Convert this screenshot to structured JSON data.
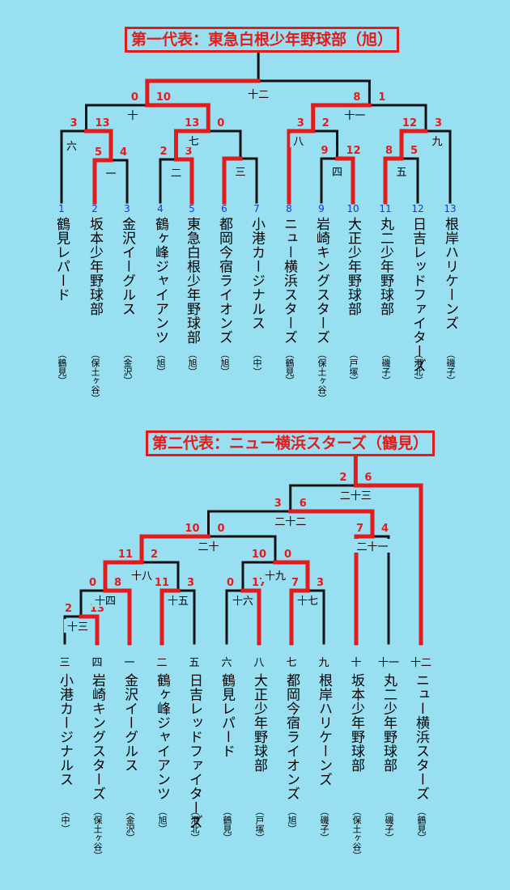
{
  "colors": {
    "background": "#99dff2",
    "winner_line": "#e31b1b",
    "line": "#111111",
    "seed_number": "#1e30e0"
  },
  "bracket1": {
    "title": "第一代表：東急白根少年野球部（旭）",
    "teams": [
      {
        "no": "1",
        "name": "鶴見レパード",
        "region": "（鶴見）"
      },
      {
        "no": "2",
        "name": "坂本少年野球部",
        "region": "（保土ヶ谷）"
      },
      {
        "no": "3",
        "name": "金沢イーグルス",
        "region": "（金沢）"
      },
      {
        "no": "4",
        "name": "鶴ヶ峰ジャイアンツ",
        "region": "（旭）"
      },
      {
        "no": "5",
        "name": "東急白根少年野球部",
        "region": "（旭）"
      },
      {
        "no": "6",
        "name": "都岡今宿ライオンズ",
        "region": "（旭）"
      },
      {
        "no": "7",
        "name": "小港カージナルス",
        "region": "（中）"
      },
      {
        "no": "8",
        "name": "ニュー横浜スターズ",
        "region": "（鶴見）"
      },
      {
        "no": "9",
        "name": "岩崎キングスターズ",
        "region": "（保土ヶ谷）"
      },
      {
        "no": "10",
        "name": "大正少年野球部",
        "region": "（戸塚）"
      },
      {
        "no": "11",
        "name": "丸二少年野球部",
        "region": "（磯子）"
      },
      {
        "no": "12",
        "name": "日吉レッドファイターズ",
        "region": "（港北）"
      },
      {
        "no": "13",
        "name": "根岸ハリケーンズ",
        "region": "（磯子）"
      }
    ],
    "games": [
      {
        "label": "一",
        "scores": [
          "5",
          "4"
        ]
      },
      {
        "label": "二",
        "scores": [
          "2",
          "3"
        ]
      },
      {
        "label": "三",
        "scores": [
          "",
          ""
        ]
      },
      {
        "label": "四",
        "scores": [
          "9",
          "12"
        ]
      },
      {
        "label": "五",
        "scores": [
          "8",
          "5"
        ]
      },
      {
        "label": "六",
        "scores": [
          "3",
          "13"
        ]
      },
      {
        "label": "七",
        "scores": [
          "13",
          "0"
        ]
      },
      {
        "label": "八",
        "scores": [
          "3",
          "2"
        ]
      },
      {
        "label": "九",
        "scores": [
          "12",
          "3"
        ]
      },
      {
        "label": "十",
        "scores": [
          "0",
          "10"
        ]
      },
      {
        "label": "十一",
        "scores": [
          "8",
          "1"
        ]
      },
      {
        "label": "十二",
        "scores": [
          "",
          ""
        ]
      }
    ]
  },
  "bracket2": {
    "title": "第二代表：ニュー横浜スターズ（鶴見）",
    "teams": [
      {
        "no": "三",
        "name": "小港カージナルス",
        "region": "（中）"
      },
      {
        "no": "四",
        "name": "岩崎キングスターズ",
        "region": "（保土ヶ谷）"
      },
      {
        "no": "一",
        "name": "金沢イーグルス",
        "region": "（金沢）"
      },
      {
        "no": "二",
        "name": "鶴ヶ峰ジャイアンツ",
        "region": "（旭）"
      },
      {
        "no": "五",
        "name": "日吉レッドファイターズ",
        "region": "（港北）"
      },
      {
        "no": "六",
        "name": "鶴見レパード",
        "region": "（鶴見）"
      },
      {
        "no": "八",
        "name": "大正少年野球部",
        "region": "（戸塚）"
      },
      {
        "no": "七",
        "name": "都岡今宿ライオンズ",
        "region": "（旭）"
      },
      {
        "no": "九",
        "name": "根岸ハリケーンズ",
        "region": "（磯子）"
      },
      {
        "no": "十",
        "name": "坂本少年野球部",
        "region": "（保土ヶ谷）"
      },
      {
        "no": "十一",
        "name": "丸二少年野球部",
        "region": "（磯子）"
      },
      {
        "no": "十二",
        "name": "ニュー横浜スターズ",
        "region": "（鶴見）"
      }
    ],
    "games": [
      {
        "label": "十三",
        "scores": [
          "2",
          "13"
        ]
      },
      {
        "label": "十四",
        "scores": [
          "0",
          "8"
        ]
      },
      {
        "label": "十五",
        "scores": [
          "11",
          "3"
        ]
      },
      {
        "label": "十六",
        "scores": [
          "0",
          "17"
        ]
      },
      {
        "label": "十七",
        "scores": [
          "7",
          "3"
        ]
      },
      {
        "label": "十八",
        "scores": [
          "11",
          "2"
        ]
      },
      {
        "label": "十九",
        "scores": [
          "10",
          "0"
        ]
      },
      {
        "label": "二十",
        "scores": [
          "10",
          "0"
        ]
      },
      {
        "label": "二十一",
        "scores": [
          "7",
          "4"
        ]
      },
      {
        "label": "二十二",
        "scores": [
          "3",
          "6"
        ]
      },
      {
        "label": "二十三",
        "scores": [
          "2",
          "6"
        ]
      }
    ]
  }
}
